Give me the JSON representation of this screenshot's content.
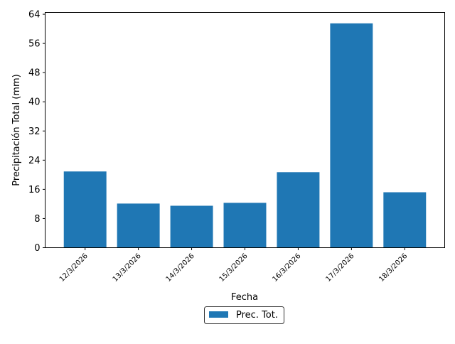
{
  "chart_data": {
    "type": "bar",
    "title": "",
    "xlabel": "Fecha",
    "ylabel": "Precipitación Total (mm)",
    "categories": [
      "12/3/2026",
      "13/3/2026",
      "14/3/2026",
      "15/3/2026",
      "16/3/2026",
      "17/3/2026",
      "18/3/2026"
    ],
    "series": [
      {
        "name": "Prec. Tot.",
        "values": [
          20.9,
          12.1,
          11.5,
          12.3,
          20.7,
          61.5,
          15.2
        ],
        "color": "#1f77b4"
      }
    ],
    "ylim": [
      0,
      64.5
    ],
    "yticks": [
      0,
      8,
      16,
      24,
      32,
      40,
      48,
      56,
      64
    ],
    "grid": false,
    "legend": "bottom-center"
  }
}
